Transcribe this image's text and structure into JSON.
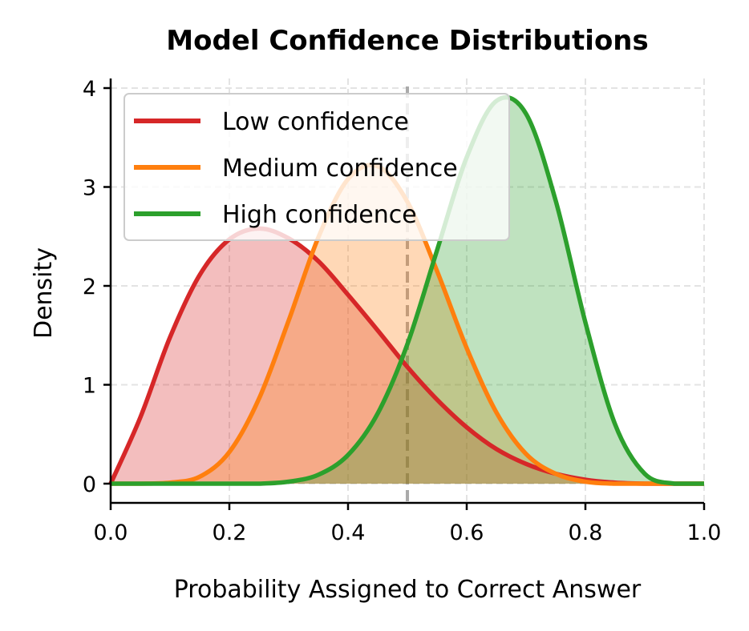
{
  "chart_data": {
    "type": "area",
    "title": "Model Confidence Distributions",
    "xlabel": "Probability Assigned to Correct Answer",
    "ylabel": "Density",
    "xlim": [
      0,
      1
    ],
    "ylim": [
      -0.2,
      4.1
    ],
    "xticks": [
      0.0,
      0.2,
      0.4,
      0.6,
      0.8,
      1.0
    ],
    "xtick_labels": [
      "0.0",
      "0.2",
      "0.4",
      "0.6",
      "0.8",
      "1.0"
    ],
    "yticks": [
      0,
      1,
      2,
      3,
      4
    ],
    "ytick_labels": [
      "0",
      "1",
      "2",
      "3",
      "4"
    ],
    "grid": true,
    "legend_placement": "upper-left",
    "reference_line": {
      "x": 0.5,
      "style": "dashed",
      "color": "#aaaaaa"
    },
    "x": [
      0,
      0.05,
      0.1,
      0.15,
      0.2,
      0.25,
      0.3,
      0.35,
      0.4,
      0.45,
      0.5,
      0.55,
      0.6,
      0.65,
      0.7,
      0.75,
      0.8,
      0.85,
      0.9,
      0.95,
      1.0
    ],
    "series": [
      {
        "name": "Low confidence",
        "color": "#d62728",
        "values": [
          0,
          0.67,
          1.48,
          2.11,
          2.47,
          2.58,
          2.48,
          2.25,
          1.91,
          1.55,
          1.18,
          0.85,
          0.57,
          0.35,
          0.2,
          0.1,
          0.04,
          0.01,
          0,
          0,
          0
        ]
      },
      {
        "name": "Medium confidence",
        "color": "#ff7f0e",
        "values": [
          0,
          0,
          0.01,
          0.07,
          0.32,
          0.86,
          1.65,
          2.49,
          3.08,
          3.21,
          2.85,
          2.15,
          1.37,
          0.72,
          0.3,
          0.1,
          0.02,
          0,
          0,
          0,
          0
        ]
      },
      {
        "name": "High confidence",
        "color": "#2ca02c",
        "values": [
          0,
          0,
          0,
          0,
          0,
          0,
          0.02,
          0.09,
          0.29,
          0.71,
          1.41,
          2.36,
          3.3,
          3.87,
          3.74,
          2.86,
          1.63,
          0.6,
          0.1,
          0,
          0
        ]
      }
    ]
  }
}
